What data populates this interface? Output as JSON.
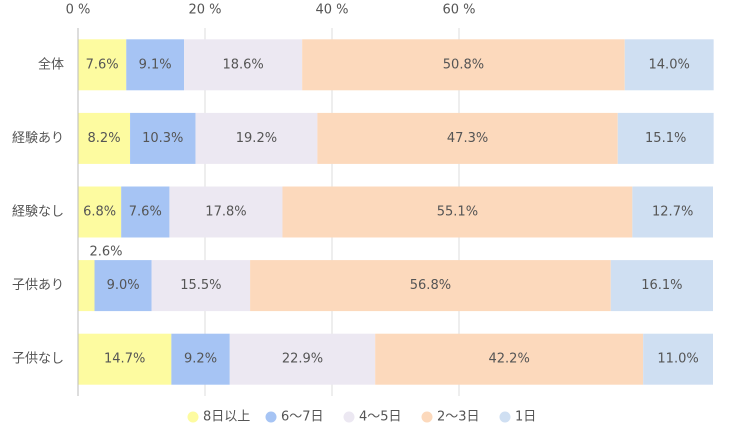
{
  "chart_data": {
    "type": "stacked_barh",
    "categories": [
      "全体",
      "経験あり",
      "経験なし",
      "子供あり",
      "子供なし"
    ],
    "series": [
      {
        "name": "8日以上",
        "color": "#fdfba0",
        "values": [
          7.6,
          8.2,
          6.8,
          2.6,
          14.7
        ],
        "value_labels": [
          "7.6%",
          "8.2%",
          "6.8%",
          "2.6%",
          "14.7%"
        ]
      },
      {
        "name": "6〜7日",
        "color": "#a6c4f4",
        "values": [
          9.1,
          10.3,
          7.6,
          9.0,
          9.2
        ],
        "value_labels": [
          "9.1%",
          "10.3%",
          "7.6%",
          "9.0%",
          "9.2%"
        ]
      },
      {
        "name": "4〜5日",
        "color": "#ece8f2",
        "values": [
          18.6,
          19.2,
          17.8,
          15.5,
          22.9
        ],
        "value_labels": [
          "18.6%",
          "19.2%",
          "17.8%",
          "15.5%",
          "22.9%"
        ]
      },
      {
        "name": "2〜3日",
        "color": "#fcd9bc",
        "values": [
          50.8,
          47.3,
          55.1,
          56.8,
          42.2
        ],
        "value_labels": [
          "50.8%",
          "47.3%",
          "55.1%",
          "56.8%",
          "42.2%"
        ]
      },
      {
        "name": "1日",
        "color": "#cfdff2",
        "values": [
          14.0,
          15.1,
          12.7,
          16.1,
          11.0
        ],
        "value_labels": [
          "14.0%",
          "15.1%",
          "12.7%",
          "16.1%",
          "11.0%"
        ]
      }
    ],
    "xlim": [
      0,
      100
    ],
    "xticks": [
      {
        "value": 0,
        "label": "0 %"
      },
      {
        "value": 20,
        "label": "20 %"
      },
      {
        "value": 40,
        "label": "40 %"
      },
      {
        "value": 60,
        "label": "60 %"
      }
    ],
    "grid": true,
    "legend": "bottom"
  }
}
